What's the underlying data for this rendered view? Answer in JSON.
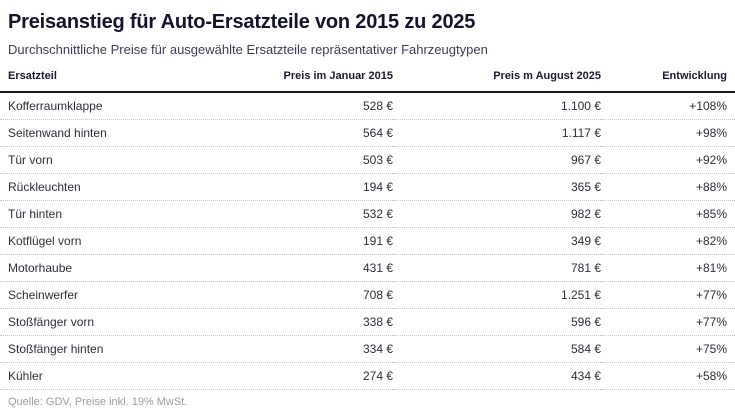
{
  "page": {
    "title": "Preisanstieg für Auto-Ersatzteile von 2015 zu 2025",
    "subtitle": "Durchschnittliche Preise für ausgewählte Ersatzteile repräsentativer Fahrzeugtypen",
    "source": "Quelle: GDV, Preise inkl. 19% MwSt."
  },
  "table": {
    "headers": [
      "Ersatzteil",
      "Preis im Januar 2015",
      "Preis m August 2025",
      "Entwicklung"
    ],
    "rows": [
      [
        "Kofferraumklappe",
        "528 €",
        "1.100 €",
        "+108%"
      ],
      [
        "Seitenwand hinten",
        "564 €",
        "1.117 €",
        "+98%"
      ],
      [
        "Tür vorn",
        "503 €",
        "967 €",
        "+92%"
      ],
      [
        "Rückleuchten",
        "194 €",
        "365 €",
        "+88%"
      ],
      [
        "Tür hinten",
        "532 €",
        "982 €",
        "+85%"
      ],
      [
        "Kotflügel vorn",
        "191 €",
        "349 €",
        "+82%"
      ],
      [
        "Motorhaube",
        "431 €",
        "781 €",
        "+81%"
      ],
      [
        "Scheinwerfer",
        "708 €",
        "1.251 €",
        "+77%"
      ],
      [
        "Stoßfänger vorn",
        "338 €",
        "596 €",
        "+77%"
      ],
      [
        "Stoßfänger hinten",
        "334 €",
        "584 €",
        "+75%"
      ],
      [
        "Kühler",
        "274 €",
        "434 €",
        "+58%"
      ]
    ]
  },
  "chart_data": {
    "type": "table",
    "title": "Preisanstieg für Auto-Ersatzteile von 2015 zu 2025",
    "subtitle": "Durchschnittliche Preise für ausgewählte Ersatzteile repräsentativer Fahrzeugtypen",
    "source": "Quelle: GDV, Preise inkl. 19% MwSt.",
    "columns": [
      "Ersatzteil",
      "Preis im Januar 2015 (EUR)",
      "Preis m August 2025 (EUR)",
      "Entwicklung (%)"
    ],
    "rows": [
      {
        "part": "Kofferraumklappe",
        "price_jan_2015_eur": 528,
        "price_aug_2025_eur": 1100,
        "change_pct": 108
      },
      {
        "part": "Seitenwand hinten",
        "price_jan_2015_eur": 564,
        "price_aug_2025_eur": 1117,
        "change_pct": 98
      },
      {
        "part": "Tür vorn",
        "price_jan_2015_eur": 503,
        "price_aug_2025_eur": 967,
        "change_pct": 92
      },
      {
        "part": "Rückleuchten",
        "price_jan_2015_eur": 194,
        "price_aug_2025_eur": 365,
        "change_pct": 88
      },
      {
        "part": "Tür hinten",
        "price_jan_2015_eur": 532,
        "price_aug_2025_eur": 982,
        "change_pct": 85
      },
      {
        "part": "Kotflügel vorn",
        "price_jan_2015_eur": 191,
        "price_aug_2025_eur": 349,
        "change_pct": 82
      },
      {
        "part": "Motorhaube",
        "price_jan_2015_eur": 431,
        "price_aug_2025_eur": 781,
        "change_pct": 81
      },
      {
        "part": "Scheinwerfer",
        "price_jan_2015_eur": 708,
        "price_aug_2025_eur": 1251,
        "change_pct": 77
      },
      {
        "part": "Stoßfänger vorn",
        "price_jan_2015_eur": 338,
        "price_aug_2025_eur": 596,
        "change_pct": 77
      },
      {
        "part": "Stoßfänger hinten",
        "price_jan_2015_eur": 334,
        "price_aug_2025_eur": 584,
        "change_pct": 75
      },
      {
        "part": "Kühler",
        "price_jan_2015_eur": 274,
        "price_aug_2025_eur": 434,
        "change_pct": 58
      }
    ]
  },
  "colors": {
    "title_text": "#13132b",
    "subtitle_text": "#3c3c52",
    "body_text": "#2e2e38",
    "header_rule": "#16161d",
    "row_divider": "#c6c6c9",
    "source_text": "#9b9ba1",
    "background": "#ffffff"
  }
}
